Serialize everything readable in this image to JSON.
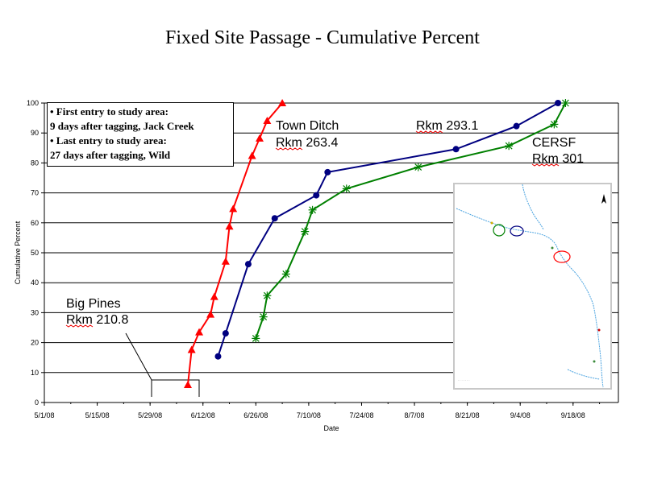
{
  "title": "Fixed Site Passage - Cumulative Percent",
  "note": {
    "line1": "• First entry to study area:",
    "line2": "9 days after tagging, Jack Creek",
    "line3": "• Last entry to study area:",
    "line4": "27 days after tagging, Wild"
  },
  "annotations": {
    "big_pines": [
      "Big Pines",
      "Rkm 210.8"
    ],
    "town_ditch": [
      "Town Ditch",
      "Rkm 263.4"
    ],
    "rkm_293": [
      "Rkm 293.1"
    ],
    "cersf": [
      "CERSF",
      "Rkm 301"
    ]
  },
  "chart_data": {
    "type": "line",
    "title": "Fixed Site Passage - Cumulative Percent",
    "xlabel": "Date",
    "ylabel": "Cumulative Percent",
    "xlim": [
      "2008-05-01",
      "2008-09-30"
    ],
    "ylim": [
      0,
      100
    ],
    "x_ticks": [
      "5/1/08",
      "5/15/08",
      "5/29/08",
      "6/12/08",
      "6/26/08",
      "7/10/08",
      "7/24/08",
      "8/7/08",
      "8/21/08",
      "9/4/08",
      "9/18/08"
    ],
    "y_ticks": [
      0,
      10,
      20,
      30,
      40,
      50,
      60,
      70,
      80,
      90,
      100
    ],
    "grid": "horizontal",
    "series": [
      {
        "color": "#ff0000",
        "marker": "triangle",
        "points": [
          [
            "2008-06-08",
            5.9
          ],
          [
            "2008-06-09",
            17.6
          ],
          [
            "2008-06-11",
            23.5
          ],
          [
            "2008-06-14",
            29.4
          ],
          [
            "2008-06-15",
            35.3
          ],
          [
            "2008-06-18",
            47.1
          ],
          [
            "2008-06-19",
            58.8
          ],
          [
            "2008-06-20",
            64.7
          ],
          [
            "2008-06-25",
            82.4
          ],
          [
            "2008-06-27",
            88.2
          ],
          [
            "2008-06-29",
            94.1
          ],
          [
            "2008-07-03",
            100
          ]
        ]
      },
      {
        "color": "#000080",
        "marker": "circle",
        "points": [
          [
            "2008-06-16",
            15.4
          ],
          [
            "2008-06-18",
            23.1
          ],
          [
            "2008-06-24",
            46.2
          ],
          [
            "2008-07-01",
            61.5
          ],
          [
            "2008-07-12",
            69.2
          ],
          [
            "2008-07-15",
            76.9
          ],
          [
            "2008-08-18",
            84.6
          ],
          [
            "2008-09-03",
            92.3
          ],
          [
            "2008-09-14",
            100
          ]
        ]
      },
      {
        "color": "#008000",
        "marker": "star",
        "points": [
          [
            "2008-06-26",
            21.4
          ],
          [
            "2008-06-28",
            28.6
          ],
          [
            "2008-06-29",
            35.7
          ],
          [
            "2008-07-04",
            42.9
          ],
          [
            "2008-07-09",
            57.1
          ],
          [
            "2008-07-11",
            64.3
          ],
          [
            "2008-07-20",
            71.4
          ],
          [
            "2008-08-08",
            78.6
          ],
          [
            "2008-09-01",
            85.7
          ],
          [
            "2008-09-13",
            92.9
          ],
          [
            "2008-09-16",
            100
          ]
        ]
      }
    ]
  }
}
